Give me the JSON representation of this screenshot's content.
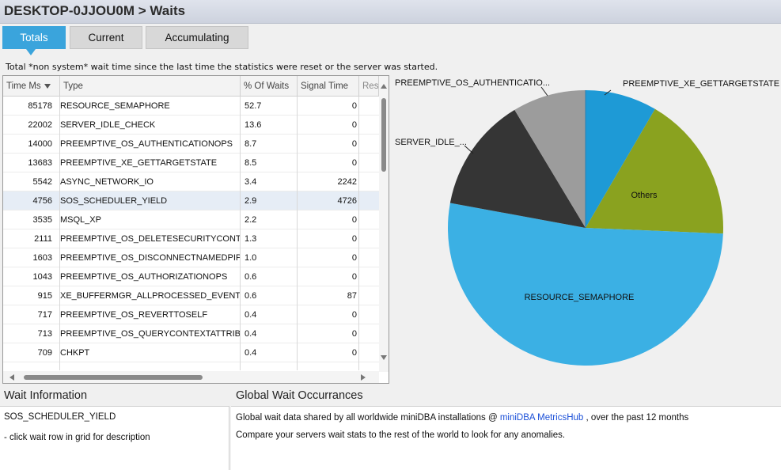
{
  "header": {
    "title": "DESKTOP-0JJOU0M > Waits"
  },
  "tabs": [
    {
      "label": "Totals",
      "active": true
    },
    {
      "label": "Current",
      "active": false
    },
    {
      "label": "Accumulating",
      "active": false
    }
  ],
  "description": "Total *non system* wait time since the last time the statistics were reset or the server was started.",
  "grid": {
    "columns": [
      "Time Ms",
      "Type",
      "% Of Waits",
      "Signal Time",
      "Res"
    ],
    "rows": [
      {
        "ms": "85178",
        "type": "RESOURCE_SEMAPHORE",
        "pct": "52.7",
        "signal": "0"
      },
      {
        "ms": "22002",
        "type": "SERVER_IDLE_CHECK",
        "pct": "13.6",
        "signal": "0"
      },
      {
        "ms": "14000",
        "type": "PREEMPTIVE_OS_AUTHENTICATIONOPS",
        "pct": "8.7",
        "signal": "0"
      },
      {
        "ms": "13683",
        "type": "PREEMPTIVE_XE_GETTARGETSTATE",
        "pct": "8.5",
        "signal": "0"
      },
      {
        "ms": "5542",
        "type": "ASYNC_NETWORK_IO",
        "pct": "3.4",
        "signal": "2242"
      },
      {
        "ms": "4756",
        "type": "SOS_SCHEDULER_YIELD",
        "pct": "2.9",
        "signal": "4726"
      },
      {
        "ms": "3535",
        "type": "MSQL_XP",
        "pct": "2.2",
        "signal": "0"
      },
      {
        "ms": "2111",
        "type": "PREEMPTIVE_OS_DELETESECURITYCONTEXT",
        "pct": "1.3",
        "signal": "0"
      },
      {
        "ms": "1603",
        "type": "PREEMPTIVE_OS_DISCONNECTNAMEDPIPE",
        "pct": "1.0",
        "signal": "0"
      },
      {
        "ms": "1043",
        "type": "PREEMPTIVE_OS_AUTHORIZATIONOPS",
        "pct": "0.6",
        "signal": "0"
      },
      {
        "ms": "915",
        "type": "XE_BUFFERMGR_ALLPROCESSED_EVENT",
        "pct": "0.6",
        "signal": "87"
      },
      {
        "ms": "717",
        "type": "PREEMPTIVE_OS_REVERTTOSELF",
        "pct": "0.4",
        "signal": "0"
      },
      {
        "ms": "713",
        "type": "PREEMPTIVE_OS_QUERYCONTEXTATTRIBUTES",
        "pct": "0.4",
        "signal": "0"
      },
      {
        "ms": "709",
        "type": "CHKPT",
        "pct": "0.4",
        "signal": "0"
      }
    ],
    "selected_row": 5
  },
  "chart_data": {
    "type": "pie",
    "slices": [
      {
        "label": "PREEMPTIVE_XE_GETTARGETSTATE",
        "value": 8.5,
        "color": "#1e9ad6"
      },
      {
        "label": "Others",
        "value": 17.4,
        "color": "#8aa21f"
      },
      {
        "label": "RESOURCE_SEMAPHORE",
        "value": 52.7,
        "color": "#3bb0e4"
      },
      {
        "label": "SERVER_IDLE_...",
        "value": 13.6,
        "color": "#353535"
      },
      {
        "label": "PREEMPTIVE_OS_AUTHENTICATIO...",
        "value": 8.7,
        "color": "#9c9c9c"
      }
    ]
  },
  "wait_info": {
    "title": "Wait Information",
    "selected": "SOS_SCHEDULER_YIELD",
    "hint": "- click wait row in grid for description"
  },
  "global": {
    "title": "Global Wait Occurrances",
    "line1_prefix": "Global wait data shared by all worldwide miniDBA installations @ ",
    "link": "miniDBA MetricsHub",
    "line1_suffix": " , over the past 12 months",
    "line2": "Compare your servers wait stats to the rest of the world to look for any anomalies."
  }
}
